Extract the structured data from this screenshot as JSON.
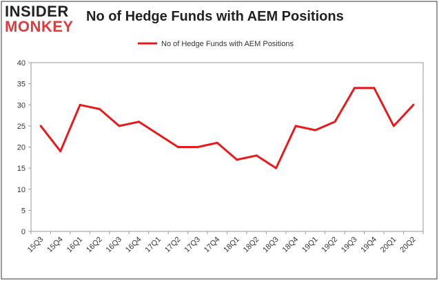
{
  "logo": {
    "line1": "INSIDER",
    "line2": "MONKEY"
  },
  "chart_data": {
    "type": "line",
    "title": "No of Hedge Funds with AEM Positions",
    "categories": [
      "15Q3",
      "15Q4",
      "16Q1",
      "16Q2",
      "16Q3",
      "16Q4",
      "17Q1",
      "17Q2",
      "17Q3",
      "17Q4",
      "18Q1",
      "18Q2",
      "18Q3",
      "18Q4",
      "19Q1",
      "19Q2",
      "19Q3",
      "19Q4",
      "20Q1",
      "20Q2"
    ],
    "series": [
      {
        "name": "No of Hedge Funds with AEM Positions",
        "values": [
          25,
          19,
          30,
          29,
          25,
          26,
          23,
          20,
          20,
          21,
          17,
          18,
          15,
          25,
          24,
          26,
          34,
          34,
          25,
          30
        ],
        "color": "#e8191c"
      }
    ],
    "xlabel": "",
    "ylabel": "",
    "ylim": [
      0,
      40
    ],
    "yticks": [
      0,
      5,
      10,
      15,
      20,
      25,
      30,
      35,
      40
    ],
    "grid": false,
    "legend_position": "top-center"
  },
  "colors": {
    "frame": "#333333",
    "plot_border": "#999999",
    "line": "#e8191c"
  }
}
